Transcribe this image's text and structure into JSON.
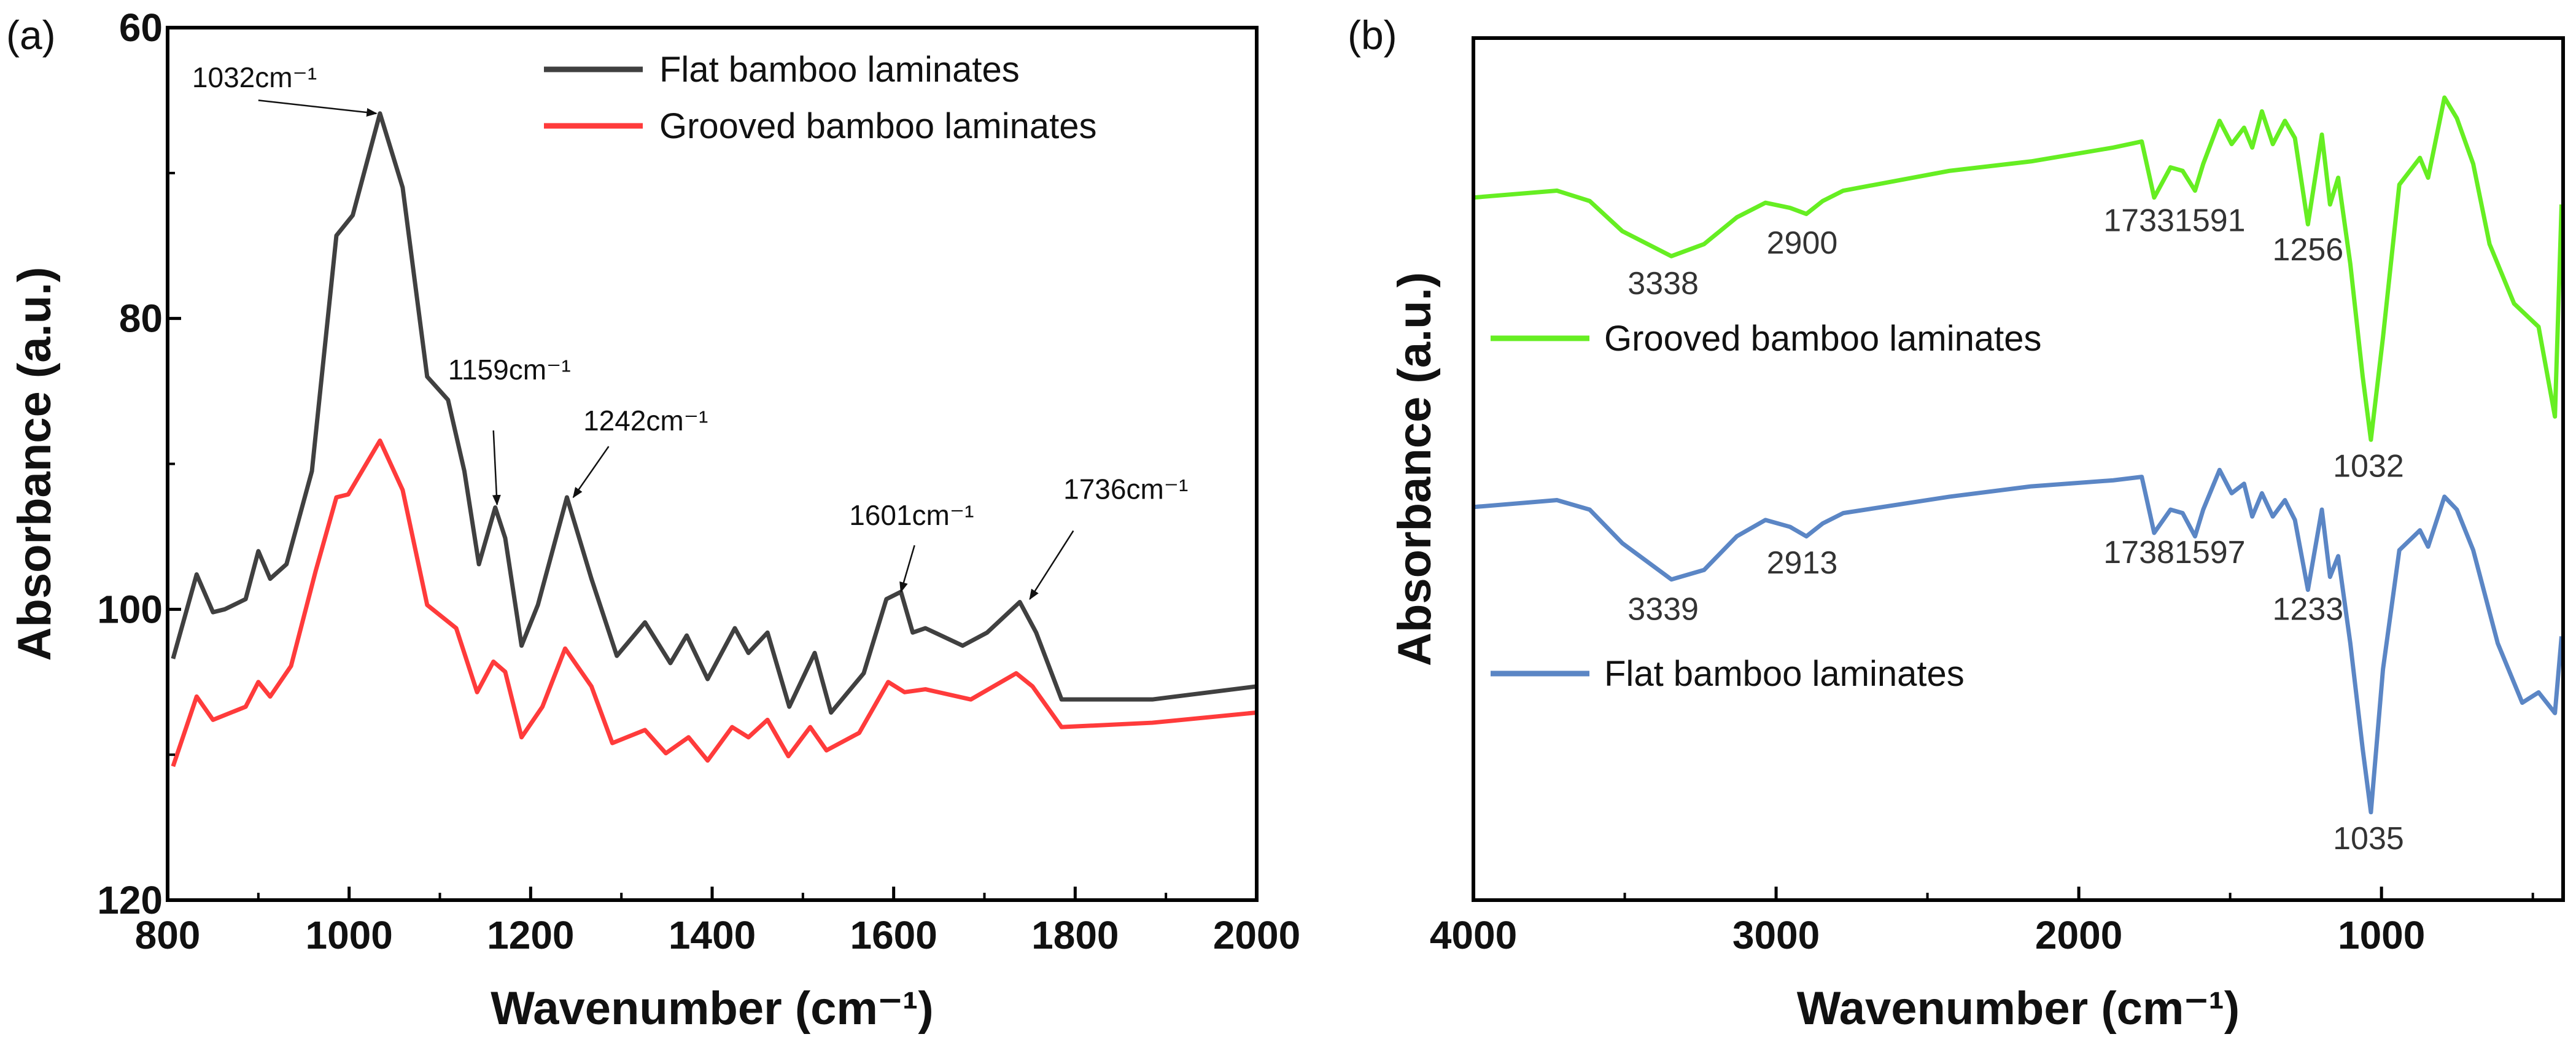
{
  "chart_data": [
    {
      "panel_label": "(a)",
      "type": "line",
      "xlabel": "Wavenumber (cm⁻¹)",
      "ylabel": "Absorbance (a.u.)",
      "xlim": [
        800,
        2000
      ],
      "ylim": [
        60,
        120
      ],
      "y_inverted": true,
      "xticks": [
        "800",
        "1000",
        "1200",
        "1400",
        "1600",
        "1800",
        "2000"
      ],
      "yticks": [
        "60",
        "80",
        "100",
        "120"
      ],
      "legend_position": "top-right",
      "series": [
        {
          "name": "Flat bamboo laminates",
          "color": "#404040",
          "x": [
            806,
            832,
            850,
            863,
            886,
            900,
            913,
            931,
            959,
            986,
            1004,
            1034,
            1059,
            1086,
            1109,
            1127,
            1143,
            1161,
            1172,
            1190,
            1208,
            1240,
            1267,
            1295,
            1326,
            1354,
            1372,
            1395,
            1425,
            1440,
            1461,
            1485,
            1513,
            1531,
            1567,
            1592,
            1608,
            1621,
            1635,
            1676,
            1703,
            1739,
            1757,
            1785,
            1885,
            2000
          ],
          "y": [
            103.4,
            97.6,
            100.2,
            100.0,
            99.3,
            96.0,
            97.9,
            96.9,
            90.5,
            74.3,
            72.9,
            65.9,
            71.0,
            84.0,
            85.6,
            90.5,
            96.9,
            93.0,
            95.1,
            102.5,
            99.7,
            92.3,
            97.9,
            103.2,
            100.9,
            103.7,
            101.8,
            104.8,
            101.3,
            103.0,
            101.6,
            106.7,
            103.0,
            107.1,
            104.4,
            99.3,
            98.8,
            101.6,
            101.3,
            102.5,
            101.6,
            99.5,
            101.6,
            106.2,
            106.2,
            105.3
          ]
        },
        {
          "name": "Grooved bamboo laminates",
          "color": "#ff3b3b",
          "x": [
            806,
            832,
            850,
            886,
            900,
            913,
            936,
            963,
            986,
            999,
            1034,
            1059,
            1086,
            1118,
            1141,
            1159,
            1172,
            1190,
            1213,
            1238,
            1267,
            1290,
            1326,
            1349,
            1374,
            1395,
            1422,
            1440,
            1461,
            1484,
            1508,
            1526,
            1562,
            1594,
            1612,
            1635,
            1685,
            1735,
            1753,
            1785,
            1885,
            2000
          ],
          "y": [
            110.8,
            106.0,
            107.6,
            106.7,
            105.0,
            106.0,
            103.9,
            97.4,
            92.3,
            92.1,
            88.4,
            91.8,
            99.7,
            101.3,
            105.7,
            103.6,
            104.3,
            108.8,
            106.7,
            102.7,
            105.3,
            109.2,
            108.3,
            109.9,
            108.8,
            110.4,
            108.1,
            108.8,
            107.6,
            110.1,
            108.1,
            109.7,
            108.5,
            105.0,
            105.7,
            105.5,
            106.2,
            104.4,
            105.3,
            108.1,
            107.8,
            107.1
          ]
        }
      ],
      "annotations": [
        {
          "text": "1032cm⁻¹",
          "tx": 827,
          "ty": 64.1,
          "ax1": 900,
          "ay1": 65.0,
          "ax2": 1030,
          "ay2": 65.9
        },
        {
          "text": "1159cm⁻¹",
          "tx": 1109,
          "ty": 84.2,
          "ax1": 1159,
          "ay1": 87.7,
          "ax2": 1163,
          "ay2": 92.8
        },
        {
          "text": "1242cm⁻¹",
          "tx": 1258,
          "ty": 87.7,
          "ax1": 1286,
          "ay1": 88.8,
          "ax2": 1247,
          "ay2": 92.3
        },
        {
          "text": "1601cm⁻¹",
          "tx": 1551,
          "ty": 94.2,
          "ax1": 1623,
          "ay1": 95.6,
          "ax2": 1608,
          "ay2": 98.8
        },
        {
          "text": "1736cm⁻¹",
          "tx": 1787,
          "ty": 92.4,
          "ax1": 1798,
          "ay1": 94.6,
          "ax2": 1750,
          "ay2": 99.3
        }
      ]
    },
    {
      "panel_label": "(b)",
      "type": "line",
      "xlabel": "Wavenumber (cm⁻¹)",
      "ylabel": "Absorbance (a.u.)",
      "xlim": [
        4000,
        400
      ],
      "ylim": [
        0,
        100
      ],
      "xticks": [
        "4000",
        "3000",
        "2000",
        "1000"
      ],
      "legend_position": "inline-left",
      "series": [
        {
          "name": "Grooved bamboo laminates",
          "color": "#66ee22",
          "x": [
            4000,
            3724,
            3616,
            3508,
            3346,
            3238,
            3130,
            3035,
            2954,
            2900,
            2846,
            2778,
            2427,
            2157,
            1886,
            1792,
            1751,
            1697,
            1657,
            1616,
            1589,
            1535,
            1495,
            1454,
            1427,
            1395,
            1359,
            1319,
            1286,
            1243,
            1197,
            1170,
            1143,
            1103,
            1062,
            1035,
            995,
            941,
            873,
            846,
            792,
            751,
            697,
            643,
            562,
            481,
            427,
            405
          ],
          "y": [
            81.5,
            82.3,
            81.1,
            77.6,
            74.7,
            76.1,
            79.2,
            80.9,
            80.3,
            79.6,
            81.1,
            82.3,
            84.6,
            85.7,
            87.3,
            88.0,
            81.5,
            85.0,
            84.6,
            82.3,
            85.4,
            90.4,
            87.7,
            89.6,
            87.3,
            91.5,
            87.7,
            90.4,
            88.4,
            78.4,
            88.8,
            80.7,
            83.8,
            73.8,
            60.7,
            53.4,
            65.3,
            83.0,
            86.1,
            83.8,
            93.1,
            90.7,
            85.4,
            76.1,
            69.2,
            66.5,
            56.1,
            80.7
          ]
        },
        {
          "name": "Flat bamboo laminates",
          "color": "#5b86c5",
          "x": [
            4000,
            3724,
            3616,
            3508,
            3346,
            3238,
            3130,
            3035,
            2954,
            2900,
            2846,
            2778,
            2427,
            2157,
            1886,
            1792,
            1751,
            1697,
            1657,
            1616,
            1589,
            1535,
            1495,
            1454,
            1427,
            1395,
            1359,
            1319,
            1286,
            1243,
            1197,
            1170,
            1143,
            1103,
            1062,
            1035,
            995,
            941,
            873,
            846,
            792,
            751,
            697,
            616,
            535,
            481,
            427,
            405
          ],
          "y": [
            45.6,
            46.4,
            45.3,
            41.4,
            37.2,
            38.3,
            42.2,
            44.1,
            43.3,
            42.2,
            43.7,
            44.9,
            46.8,
            48.0,
            48.7,
            49.1,
            42.6,
            45.3,
            44.9,
            42.2,
            45.3,
            49.9,
            47.2,
            48.3,
            44.5,
            47.2,
            44.5,
            46.4,
            44.1,
            36.0,
            45.3,
            37.5,
            39.9,
            29.8,
            17.5,
            10.2,
            26.8,
            40.6,
            42.9,
            41.0,
            46.8,
            45.3,
            40.6,
            29.8,
            22.9,
            24.1,
            21.7,
            30.6
          ]
        }
      ],
      "peak_labels": [
        {
          "text": "3338",
          "x": 3373,
          "y": 70.3
        },
        {
          "text": "2900",
          "x": 2914,
          "y": 75.0
        },
        {
          "text": "17331591",
          "x": 1684,
          "y": 77.6
        },
        {
          "text": "1256",
          "x": 1243,
          "y": 74.2
        },
        {
          "text": "1032",
          "x": 1043,
          "y": 49.1
        },
        {
          "text": "3339",
          "x": 3373,
          "y": 32.5
        },
        {
          "text": "2913",
          "x": 2914,
          "y": 37.9
        },
        {
          "text": "17381597",
          "x": 1684,
          "y": 39.1
        },
        {
          "text": "1233",
          "x": 1243,
          "y": 32.5
        },
        {
          "text": "1035",
          "x": 1043,
          "y": 5.9
        }
      ]
    }
  ]
}
